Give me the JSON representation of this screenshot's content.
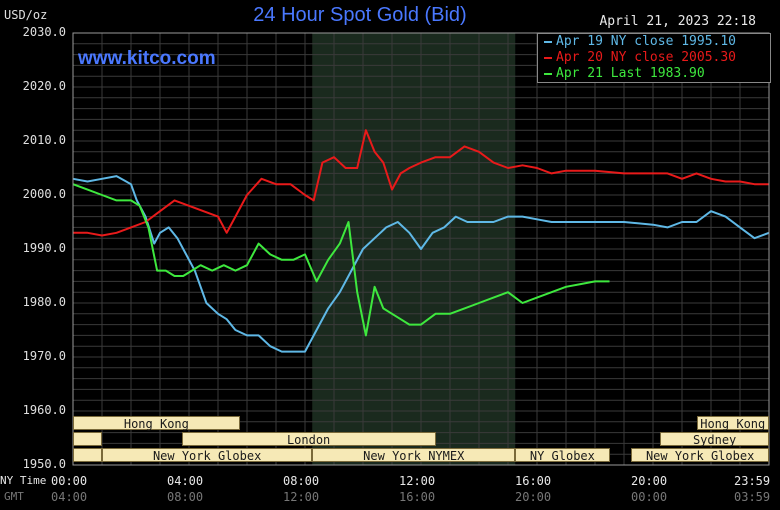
{
  "header": {
    "title": "24 Hour Spot Gold (Bid)",
    "unit": "USD/oz",
    "timestamp": "April 21, 2023 22:18",
    "watermark": "www.kitco.com"
  },
  "axis_names": {
    "time": "NY Time",
    "gmt": "GMT"
  },
  "colors": {
    "background": "#000000",
    "grid": "#3a3a3a",
    "shaded_band": "#1a2a1e",
    "apr19": "#5fb8e6",
    "apr20": "#e81a1a",
    "apr21": "#3ee83e",
    "title": "#4a78ff",
    "session_fill": "#f6e9b6"
  },
  "legend": [
    {
      "label": "Apr 19 NY close 1995.10",
      "color": "#5fb8e6"
    },
    {
      "label": "Apr 20 NY close 2005.30",
      "color": "#e81a1a"
    },
    {
      "label": "Apr 21 Last 1983.90",
      "color": "#3ee83e"
    }
  ],
  "sessions": [
    {
      "label": "Hong Kong",
      "start": 0,
      "end": 5.75,
      "row": 0
    },
    {
      "label": "",
      "start": 0,
      "end": 1.0,
      "row": 1
    },
    {
      "label": "London",
      "start": 3.75,
      "end": 12.5,
      "row": 1
    },
    {
      "label": "",
      "start": 0,
      "end": 1.0,
      "row": 2
    },
    {
      "label": "New York Globex",
      "start": 1.0,
      "end": 8.25,
      "row": 2
    },
    {
      "label": "New York NYMEX",
      "start": 8.25,
      "end": 15.25,
      "row": 2
    },
    {
      "label": "NY Globex",
      "start": 15.25,
      "end": 18.5,
      "row": 2
    },
    {
      "label": "Hong Kong",
      "start": 21.5,
      "end": 24.0,
      "row": 0
    },
    {
      "label": "Sydney",
      "start": 20.25,
      "end": 24.0,
      "row": 1
    },
    {
      "label": "New York Globex",
      "start": 19.25,
      "end": 24.0,
      "row": 2
    }
  ],
  "chart_data": {
    "type": "line",
    "title": "24 Hour Spot Gold (Bid)",
    "ylabel": "USD/oz",
    "ylim": [
      1950,
      2030
    ],
    "xlim": [
      0,
      24
    ],
    "yticks": [
      "2030.0",
      "2020.0",
      "2010.0",
      "2000.0",
      "1990.0",
      "1980.0",
      "1970.0",
      "1960.0",
      "1950.0"
    ],
    "xticks_ny": [
      "00:00",
      "04:00",
      "08:00",
      "12:00",
      "16:00",
      "20:00",
      "23:59"
    ],
    "xticks_gmt": [
      "04:00",
      "08:00",
      "12:00",
      "16:00",
      "20:00",
      "00:00",
      "03:59"
    ],
    "shaded_hours": [
      8.25,
      15.25
    ],
    "grid": true,
    "legend_position": "top-right",
    "series": [
      {
        "name": "Apr 19 NY close 1995.10",
        "x": [
          0,
          0.5,
          1,
          1.5,
          2,
          2.2,
          2.5,
          2.8,
          3.0,
          3.3,
          3.6,
          3.9,
          4.2,
          4.6,
          5.0,
          5.3,
          5.6,
          6.0,
          6.4,
          6.8,
          7.2,
          7.6,
          8.0,
          8.4,
          8.8,
          9.2,
          9.6,
          10.0,
          10.4,
          10.8,
          11.2,
          11.6,
          12.0,
          12.4,
          12.8,
          13.2,
          13.6,
          14.0,
          14.5,
          15.0,
          15.5,
          16.0,
          16.5,
          17.0,
          18.0,
          19.0,
          20.0,
          20.5,
          21.0,
          21.5,
          22.0,
          22.5,
          23.0,
          23.5,
          24.0
        ],
        "y": [
          2003,
          2002.5,
          2003,
          2003.5,
          2002,
          1999,
          1996,
          1991,
          1993,
          1994,
          1992,
          1989,
          1986,
          1980,
          1978,
          1977,
          1975,
          1974,
          1974,
          1972,
          1971,
          1971,
          1971,
          1975,
          1979,
          1982,
          1986,
          1990,
          1992,
          1994,
          1995,
          1993,
          1990,
          1993,
          1994,
          1996,
          1995,
          1995,
          1995,
          1996,
          1996,
          1995.5,
          1995,
          1995,
          1995,
          1995,
          1994.5,
          1994,
          1995,
          1995,
          1997,
          1996,
          1994,
          1992,
          1993
        ]
      },
      {
        "name": "Apr 20 NY close 2005.30",
        "x": [
          0,
          0.5,
          1,
          1.5,
          2,
          2.5,
          3.0,
          3.5,
          4.0,
          4.5,
          5.0,
          5.3,
          5.6,
          6.0,
          6.5,
          7.0,
          7.5,
          8.0,
          8.3,
          8.6,
          9.0,
          9.4,
          9.8,
          10.1,
          10.4,
          10.7,
          11.0,
          11.3,
          11.6,
          12.0,
          12.5,
          13.0,
          13.5,
          14.0,
          14.5,
          15.0,
          15.5,
          16.0,
          16.5,
          17.0,
          18.0,
          19.0,
          20.0,
          20.5,
          21.0,
          21.5,
          22.0,
          22.5,
          23.0,
          23.5,
          24.0
        ],
        "y": [
          1993,
          1993,
          1992.5,
          1993,
          1994,
          1995,
          1997,
          1999,
          1998,
          1997,
          1996,
          1993,
          1996,
          2000,
          2003,
          2002,
          2002,
          2000,
          1999,
          2006,
          2007,
          2005,
          2005,
          2012,
          2008,
          2006,
          2001,
          2004,
          2005,
          2006,
          2007,
          2007,
          2009,
          2008,
          2006,
          2005,
          2005.5,
          2005,
          2004,
          2004.5,
          2004.5,
          2004,
          2004,
          2004,
          2003,
          2004,
          2003,
          2002.5,
          2002.5,
          2002,
          2002
        ]
      },
      {
        "name": "Apr 21 Last 1983.90",
        "x": [
          0,
          0.5,
          1.0,
          1.5,
          2.0,
          2.3,
          2.6,
          2.9,
          3.2,
          3.5,
          3.8,
          4.1,
          4.4,
          4.8,
          5.2,
          5.6,
          6.0,
          6.4,
          6.8,
          7.2,
          7.6,
          8.0,
          8.4,
          8.8,
          9.2,
          9.5,
          9.8,
          10.1,
          10.4,
          10.7,
          11.0,
          11.3,
          11.6,
          12.0,
          12.5,
          13.0,
          13.5,
          14.0,
          14.5,
          15.0,
          15.5,
          16.0,
          16.5,
          17.0,
          17.5,
          18.0,
          18.5
        ],
        "y": [
          2002,
          2001,
          2000,
          1999,
          1999,
          1998,
          1994,
          1986,
          1986,
          1985,
          1985,
          1986,
          1987,
          1986,
          1987,
          1986,
          1987,
          1991,
          1989,
          1988,
          1988,
          1989,
          1984,
          1988,
          1991,
          1995,
          1982,
          1974,
          1983,
          1979,
          1978,
          1977,
          1976,
          1976,
          1978,
          1978,
          1979,
          1980,
          1981,
          1982,
          1980,
          1981,
          1982,
          1983,
          1983.5,
          1984,
          1984
        ]
      }
    ]
  }
}
